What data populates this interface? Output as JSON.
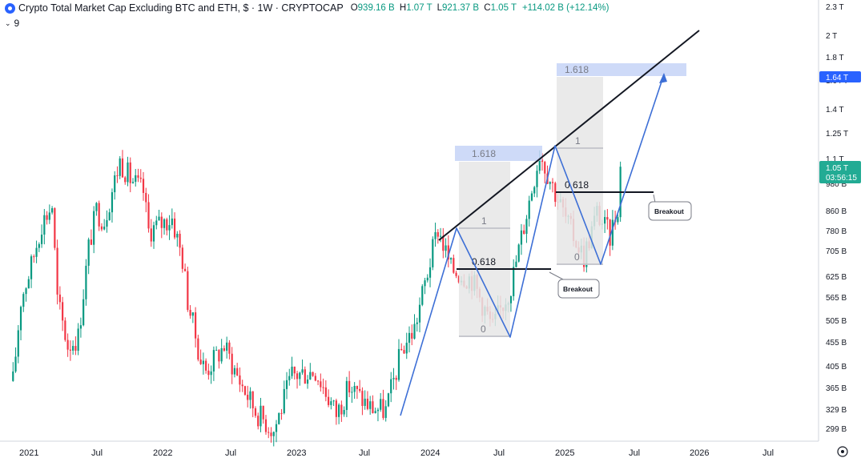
{
  "header": {
    "title": "Crypto Total Market Cap Excluding BTC and ETH, $ · 1W · CRYPTOCAP",
    "ohlc": [
      {
        "k": "O",
        "v": "939.16 B"
      },
      {
        "k": "H",
        "v": "1.07 T"
      },
      {
        "k": "L",
        "v": "921.37 B"
      },
      {
        "k": "C",
        "v": "1.05 T"
      }
    ],
    "change": "+114.02 B (+12.14%)",
    "indicator_count": "9"
  },
  "price_badges": {
    "target": "1.64 T",
    "current": "1.05 T",
    "countdown": "03:56:15"
  },
  "colors": {
    "up": "#089981",
    "down": "#f23645",
    "projection": "#3d6fd6",
    "fib_band": "#c5d3f7",
    "target_badge": "#2962ff",
    "current_badge": "#22ab94"
  },
  "chart_data": {
    "type": "candlestick",
    "title": "Crypto Total Market Cap Excluding BTC and ETH, $ · 1W · CRYPTOCAP",
    "y_scale": "log",
    "ylim_billions": [
      285,
      2350
    ],
    "xlim": [
      "2020-12-21",
      "2026-12-28"
    ],
    "x_ticks": [
      "2021",
      "Jul",
      "2022",
      "Jul",
      "2023",
      "Jul",
      "2024",
      "Jul",
      "2025",
      "Jul",
      "2026",
      "Jul"
    ],
    "y_ticks": [
      "2.3 T",
      "2 T",
      "1.8 T",
      "1.64 T",
      "1.4 T",
      "1.25 T",
      "1.1 T",
      "980 B",
      "860 B",
      "780 B",
      "705 B",
      "625 B",
      "565 B",
      "505 B",
      "455 B",
      "405 B",
      "365 B",
      "329 B",
      "299 B"
    ],
    "approx_close_path_billions": [
      [
        "2021-01-25",
        380
      ],
      [
        "2021-02-15",
        560
      ],
      [
        "2021-03-15",
        660
      ],
      [
        "2021-04-12",
        810
      ],
      [
        "2021-05-10",
        880
      ],
      [
        "2021-05-24",
        560
      ],
      [
        "2021-06-21",
        450
      ],
      [
        "2021-07-19",
        470
      ],
      [
        "2021-08-16",
        720
      ],
      [
        "2021-09-06",
        860
      ],
      [
        "2021-09-27",
        820
      ],
      [
        "2021-11-08",
        1090
      ],
      [
        "2021-12-06",
        1000
      ],
      [
        "2022-01-10",
        940
      ],
      [
        "2022-01-24",
        780
      ],
      [
        "2022-03-28",
        830
      ],
      [
        "2022-04-25",
        680
      ],
      [
        "2022-05-09",
        560
      ],
      [
        "2022-06-13",
        420
      ],
      [
        "2022-06-27",
        400
      ],
      [
        "2022-08-15",
        450
      ],
      [
        "2022-09-19",
        390
      ],
      [
        "2022-11-07",
        330
      ],
      [
        "2022-12-26",
        300
      ],
      [
        "2023-02-13",
        390
      ],
      [
        "2023-04-17",
        400
      ],
      [
        "2023-06-12",
        325
      ],
      [
        "2023-07-17",
        370
      ],
      [
        "2023-09-11",
        335
      ],
      [
        "2023-10-23",
        330
      ],
      [
        "2023-12-04",
        440
      ],
      [
        "2024-01-08",
        490
      ],
      [
        "2024-03-11",
        790
      ],
      [
        "2024-04-15",
        650
      ],
      [
        "2024-06-10",
        620
      ],
      [
        "2024-08-05",
        490
      ],
      [
        "2024-09-23",
        600
      ],
      [
        "2024-11-11",
        900
      ],
      [
        "2024-12-09",
        1140
      ],
      [
        "2025-01-06",
        1000
      ],
      [
        "2025-02-24",
        800
      ],
      [
        "2025-04-07",
        690
      ],
      [
        "2025-05-12",
        850
      ],
      [
        "2025-06-16",
        760
      ],
      [
        "2025-07-07",
        880
      ],
      [
        "2025-07-14",
        1050
      ]
    ],
    "fib_levels": [
      {
        "labels": [
          "1.618",
          "1",
          "0.618",
          "0"
        ]
      },
      {
        "labels": [
          "1.618",
          "1",
          "0.618",
          "0"
        ]
      }
    ],
    "annotations": [
      "Breakout",
      "Breakout"
    ]
  }
}
